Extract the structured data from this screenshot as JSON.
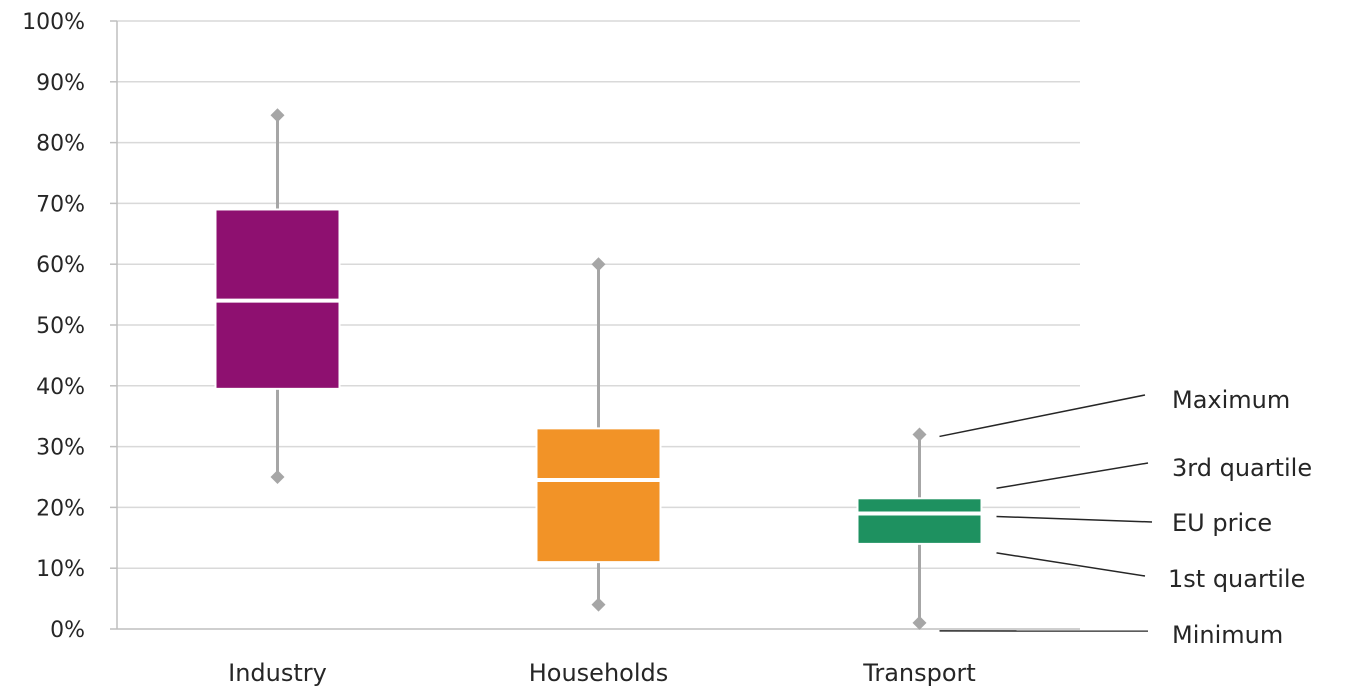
{
  "chart_data": {
    "type": "box",
    "title": "",
    "xlabel": "",
    "ylabel": "",
    "ylim": [
      0,
      100
    ],
    "yticks": [
      0,
      10,
      20,
      30,
      40,
      50,
      60,
      70,
      80,
      90,
      100
    ],
    "ytick_labels": [
      "0%",
      "10%",
      "20%",
      "30%",
      "40%",
      "50%",
      "60%",
      "70%",
      "80%",
      "90%",
      "100%"
    ],
    "grid": true,
    "categories": [
      "Industry",
      "Households",
      "Transport"
    ],
    "series": [
      {
        "category": "Industry",
        "min": 25,
        "q1": 39.5,
        "median": 54,
        "q3": 69,
        "max": 84.5,
        "color": "#8e1070"
      },
      {
        "category": "Households",
        "min": 4,
        "q1": 11,
        "median": 24.5,
        "q3": 33,
        "max": 60,
        "color": "#f29327"
      },
      {
        "category": "Transport",
        "min": 1,
        "q1": 14,
        "median": 19,
        "q3": 21.5,
        "max": 32,
        "color": "#1e9160"
      }
    ],
    "legend": {
      "placement": "right",
      "labels": {
        "max": "Maximum",
        "q3": "3rd quartile",
        "median": "EU price",
        "q1": "1st quartile",
        "min": "Minimum"
      }
    }
  }
}
